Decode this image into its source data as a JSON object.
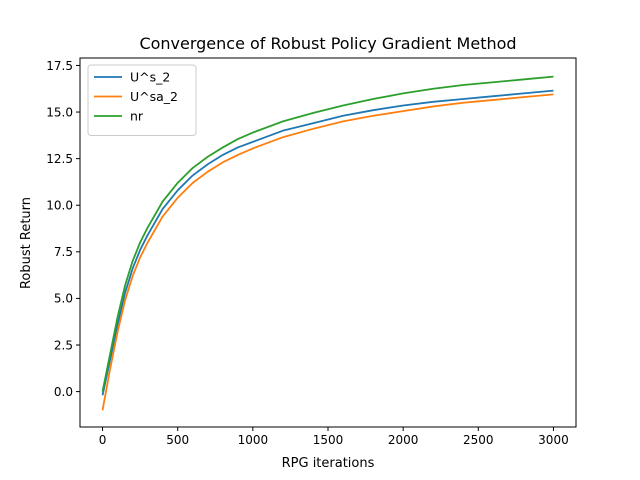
{
  "chart_data": {
    "type": "line",
    "title": "Convergence of Robust Policy Gradient Method",
    "xlabel": "RPG iterations",
    "ylabel": "Robust Return",
    "xlim": [
      -150,
      3150
    ],
    "ylim": [
      -1.9,
      17.9
    ],
    "xticks": [
      0,
      500,
      1000,
      1500,
      2000,
      2500,
      3000
    ],
    "yticks": [
      0.0,
      2.5,
      5.0,
      7.5,
      10.0,
      12.5,
      15.0,
      17.5
    ],
    "xtick_labels": [
      "0",
      "500",
      "1000",
      "1500",
      "2000",
      "2500",
      "3000"
    ],
    "ytick_labels": [
      "0.0",
      "2.5",
      "5.0",
      "7.5",
      "10.0",
      "12.5",
      "15.0",
      "17.5"
    ],
    "grid": false,
    "legend_position": "top-left",
    "x": [
      0,
      50,
      100,
      150,
      200,
      250,
      300,
      400,
      500,
      600,
      700,
      800,
      900,
      1000,
      1200,
      1400,
      1600,
      1800,
      2000,
      2200,
      2400,
      2600,
      2800,
      3000
    ],
    "series": [
      {
        "name": "U^s_2",
        "color": "#1f77b4",
        "values": [
          -0.2,
          1.7,
          3.6,
          5.3,
          6.6,
          7.6,
          8.4,
          9.8,
          10.8,
          11.6,
          12.2,
          12.7,
          13.1,
          13.4,
          14.0,
          14.4,
          14.8,
          15.1,
          15.35,
          15.55,
          15.7,
          15.85,
          16.0,
          16.15
        ]
      },
      {
        "name": "U^sa_2",
        "color": "#ff7f0e",
        "values": [
          -1.0,
          1.2,
          3.2,
          4.9,
          6.2,
          7.2,
          8.0,
          9.4,
          10.4,
          11.2,
          11.8,
          12.3,
          12.7,
          13.05,
          13.65,
          14.1,
          14.5,
          14.8,
          15.05,
          15.3,
          15.5,
          15.65,
          15.8,
          15.95
        ]
      },
      {
        "name": "nr",
        "color": "#2ca02c",
        "values": [
          0.0,
          2.0,
          4.0,
          5.7,
          7.0,
          8.0,
          8.8,
          10.2,
          11.2,
          12.0,
          12.6,
          13.1,
          13.55,
          13.9,
          14.5,
          14.95,
          15.35,
          15.7,
          16.0,
          16.25,
          16.45,
          16.6,
          16.75,
          16.9
        ]
      }
    ]
  }
}
